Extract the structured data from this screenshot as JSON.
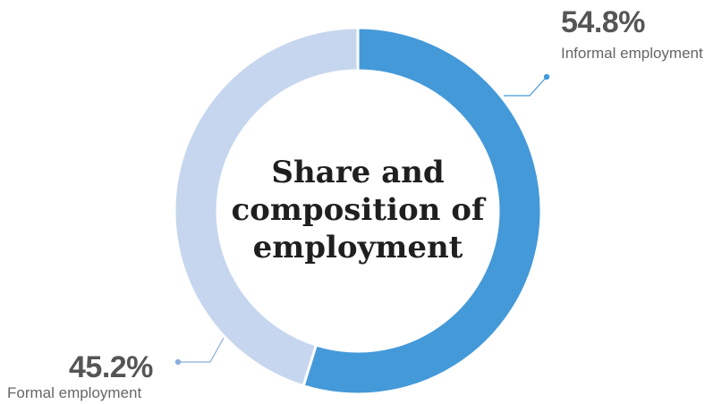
{
  "chart_data": {
    "type": "pie",
    "title_lines": [
      "Share and",
      "composition of",
      "employment"
    ],
    "slices": [
      {
        "label": "Informal employment",
        "value": 54.8,
        "value_label": "54.8%",
        "color": "#4499d9"
      },
      {
        "label": "Formal employment",
        "value": 45.2,
        "value_label": "45.2%",
        "color": "#c6d6ee"
      }
    ],
    "legend": "none"
  }
}
